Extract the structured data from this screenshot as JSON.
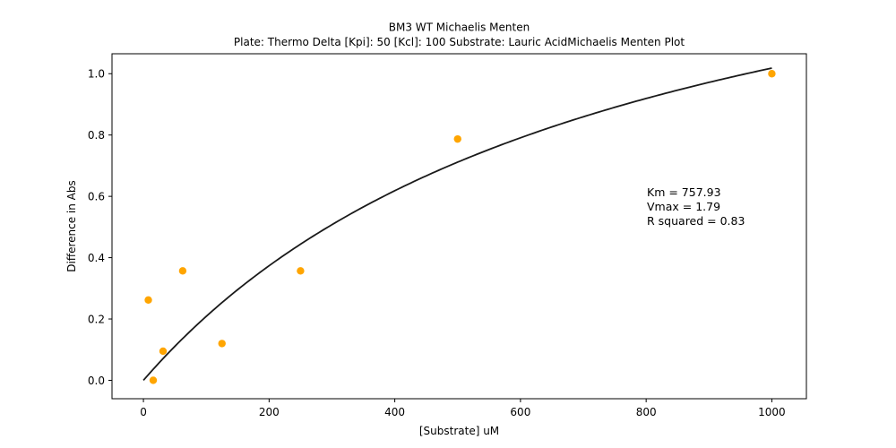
{
  "chart_data": {
    "type": "scatter",
    "title_line1": "BM3 WT Michaelis Menten",
    "title_line2": "Plate: Thermo Delta  [Kpi]: 50  [Kcl]: 100  Substrate: Lauric AcidMichaelis Menten Plot",
    "xlabel": "[Substrate] uM",
    "ylabel": "Difference in Abs",
    "xlim": [
      -50,
      1055
    ],
    "ylim": [
      -0.06,
      1.065
    ],
    "xticks": [
      0,
      200,
      400,
      600,
      800,
      1000
    ],
    "yticks": [
      0.0,
      0.2,
      0.4,
      0.6,
      0.8,
      1.0
    ],
    "xtick_labels": [
      "0",
      "200",
      "400",
      "600",
      "800",
      "1000"
    ],
    "ytick_labels": [
      "0.0",
      "0.2",
      "0.4",
      "0.6",
      "0.8",
      "1.0"
    ],
    "grid": false,
    "points": {
      "color": "#ffa500",
      "x": [
        7.8,
        15.6,
        31.25,
        62.5,
        125,
        250,
        500,
        1000
      ],
      "y": [
        0.262,
        0.0,
        0.095,
        0.357,
        0.12,
        0.357,
        0.787,
        1.0
      ]
    },
    "fit": {
      "type": "michaelis-menten",
      "color": "#1a1a1a",
      "Km": 757.93,
      "Vmax": 1.79,
      "x_range": [
        0,
        1000
      ]
    },
    "annotations": [
      "Km = 757.93",
      "Vmax = 1.79",
      "R squared = 0.83"
    ]
  }
}
